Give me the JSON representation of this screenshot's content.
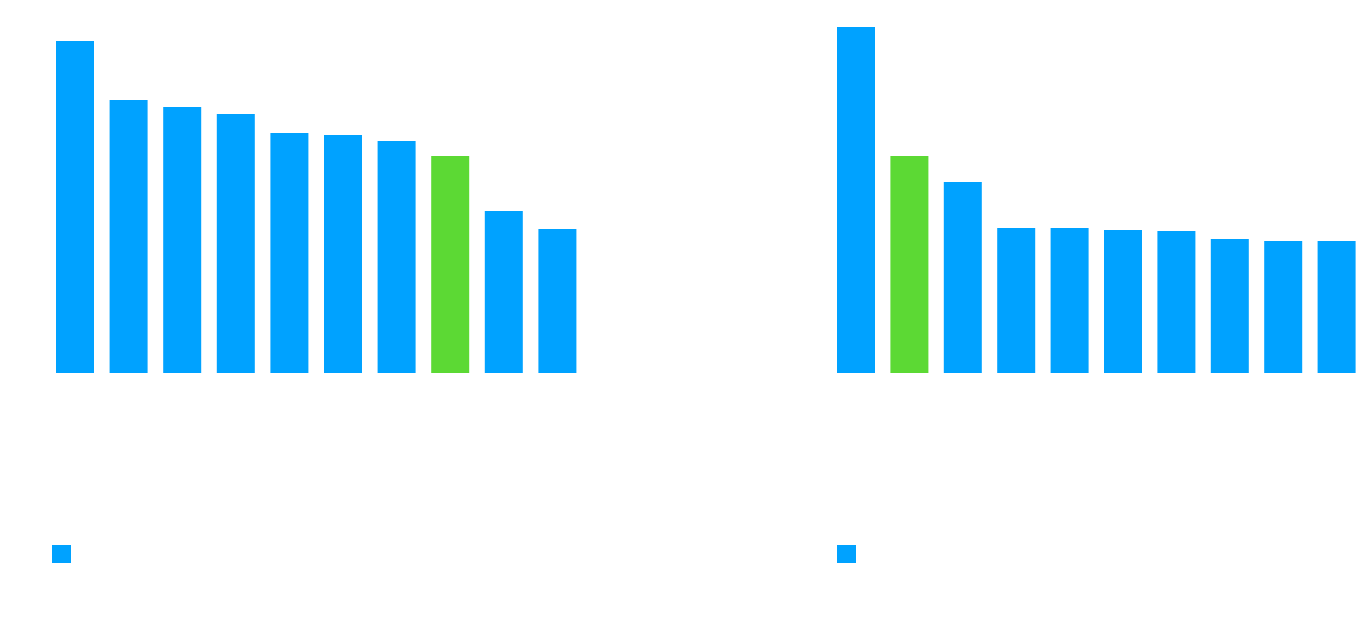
{
  "chart_data": [
    {
      "type": "bar",
      "categories": [
        "",
        "",
        "",
        "",
        "",
        "",
        "",
        "",
        "",
        ""
      ],
      "values": [
        332,
        273,
        266,
        259,
        240,
        238,
        232,
        217,
        162,
        144
      ],
      "highlight_index": 7,
      "ylim": [
        0,
        345
      ],
      "grid": false,
      "legend_position": "bottom-left",
      "legend": [
        {
          "name": "",
          "color": "#00a2ff"
        }
      ]
    },
    {
      "type": "bar",
      "categories": [
        "",
        "",
        "",
        "",
        "",
        "",
        "",
        "",
        "",
        ""
      ],
      "values": [
        346,
        217,
        191,
        145,
        145,
        143,
        142,
        134,
        132,
        132
      ],
      "highlight_index": 1,
      "ylim": [
        0,
        346
      ],
      "grid": false,
      "legend_position": "bottom-left",
      "legend": [
        {
          "name": "",
          "color": "#00a2ff"
        }
      ]
    }
  ],
  "colors": {
    "bar": "#00a2ff",
    "highlight": "#5cd934"
  }
}
